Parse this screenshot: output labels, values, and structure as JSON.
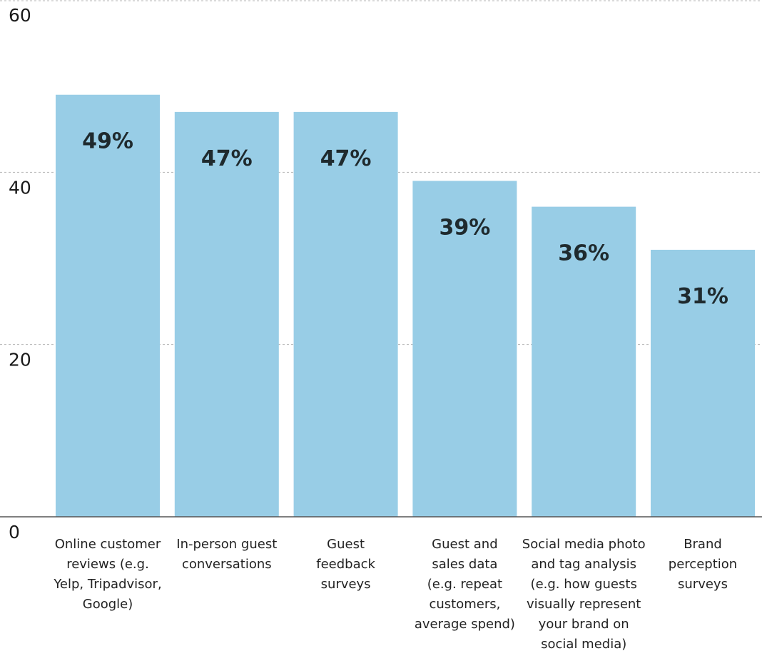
{
  "chart_data": {
    "type": "bar",
    "categories": [
      [
        "Online customer",
        "reviews (e.g.",
        "Yelp, Tripadvisor,",
        "Google)"
      ],
      [
        "In-person guest",
        "conversations"
      ],
      [
        "Guest",
        "feedback",
        "surveys"
      ],
      [
        "Guest and",
        "sales data",
        "(e.g. repeat",
        "customers,",
        "average spend)"
      ],
      [
        "Social media photo",
        "and tag analysis",
        "(e.g. how guests",
        "visually represent",
        "your brand on",
        "social media)"
      ],
      [
        "Brand",
        "perception",
        "surveys"
      ]
    ],
    "values": [
      49,
      47,
      47,
      39,
      36,
      31
    ],
    "value_labels": [
      "49%",
      "47%",
      "47%",
      "39%",
      "36%",
      "31%"
    ],
    "ylim": [
      0,
      60
    ],
    "yticks": [
      0,
      20,
      40,
      60
    ],
    "ytick_labels": [
      "0",
      "20",
      "40",
      "60"
    ],
    "grid": true,
    "bar_color": "#98cde6",
    "label_color": "#1f2a2e"
  }
}
